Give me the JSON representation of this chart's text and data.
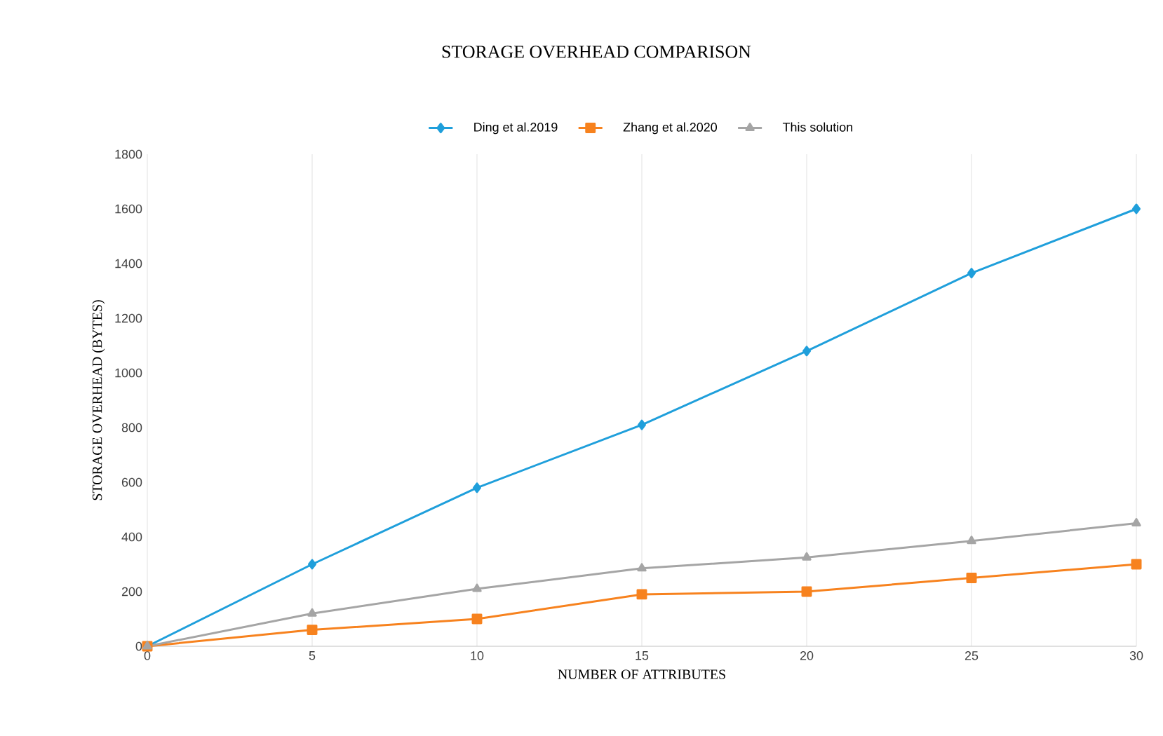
{
  "chart_data": {
    "type": "line",
    "title": "STORAGE OVERHEAD COMPARISON",
    "xlabel": "NUMBER OF ATTRIBUTES",
    "ylabel": "STORAGE OVERHEAD (BYTES)",
    "x": [
      0,
      5,
      10,
      15,
      20,
      25,
      30
    ],
    "series": [
      {
        "name": "Ding et al.2019",
        "color": "#1f9fdb",
        "marker": "diamond",
        "values": [
          0,
          300,
          580,
          810,
          1080,
          1365,
          1600
        ]
      },
      {
        "name": "Zhang et al.2020",
        "color": "#f7821e",
        "marker": "square",
        "values": [
          0,
          60,
          100,
          190,
          200,
          250,
          300
        ]
      },
      {
        "name": "This solution",
        "color": "#a5a5a5",
        "marker": "triangle",
        "values": [
          0,
          120,
          210,
          285,
          325,
          385,
          450
        ]
      }
    ],
    "xlim": [
      0,
      30
    ],
    "xticks": [
      0,
      5,
      10,
      15,
      20,
      25,
      30
    ],
    "ylim": [
      0,
      1800
    ],
    "yticks": [
      0,
      200,
      400,
      600,
      800,
      1000,
      1200,
      1400,
      1600,
      1800
    ],
    "grid": "x",
    "legend": "top"
  }
}
